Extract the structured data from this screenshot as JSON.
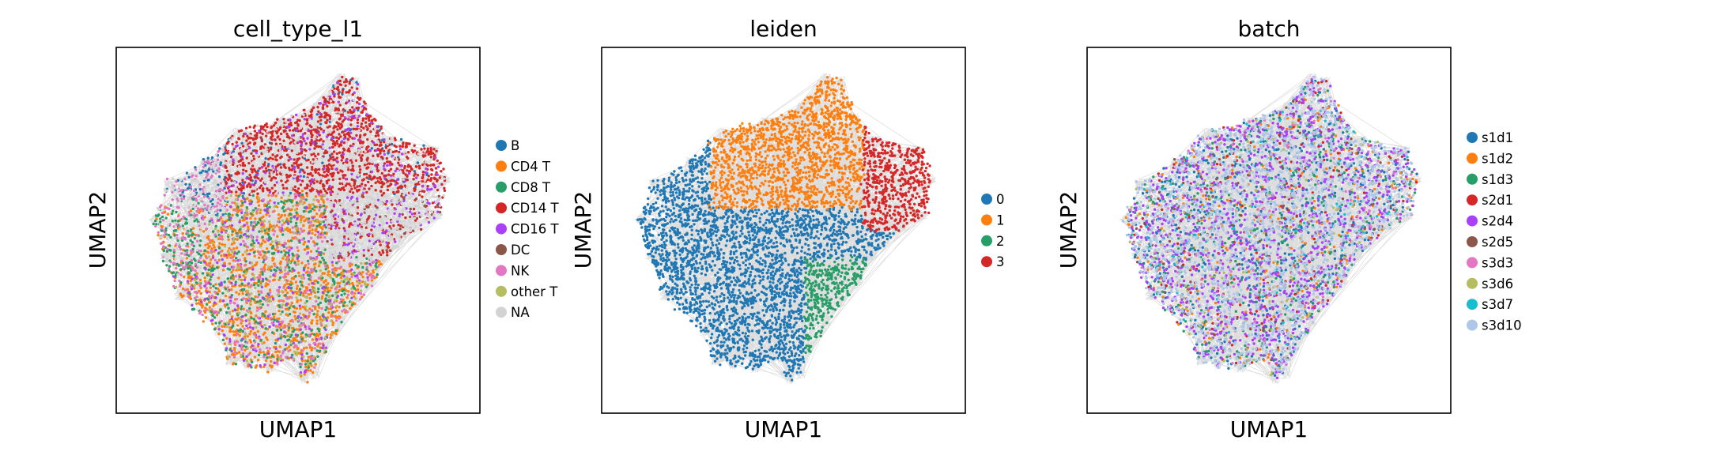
{
  "chart_data": [
    {
      "type": "scatter",
      "title": "cell_type_l1",
      "xlabel": "UMAP1",
      "ylabel": "UMAP2",
      "xticks": [],
      "yticks": [],
      "legend_placement": "right-outside",
      "series": [
        {
          "name": "B",
          "color": "#1f77b4"
        },
        {
          "name": "CD4 T",
          "color": "#ff7f0e"
        },
        {
          "name": "CD8 T",
          "color": "#279e68"
        },
        {
          "name": "CD14 T",
          "color": "#d62728"
        },
        {
          "name": "CD16 T",
          "color": "#aa40fc"
        },
        {
          "name": "DC",
          "color": "#8c564b"
        },
        {
          "name": "NK",
          "color": "#e377c2"
        },
        {
          "name": "other T",
          "color": "#b5bd61"
        },
        {
          "name": "NA",
          "color": "#d3d3d3"
        }
      ]
    },
    {
      "type": "scatter",
      "title": "leiden",
      "xlabel": "UMAP1",
      "ylabel": "UMAP2",
      "xticks": [],
      "yticks": [],
      "legend_placement": "right-outside",
      "series": [
        {
          "name": "0",
          "color": "#1f77b4"
        },
        {
          "name": "1",
          "color": "#ff7f0e"
        },
        {
          "name": "2",
          "color": "#279e68"
        },
        {
          "name": "3",
          "color": "#d62728"
        }
      ]
    },
    {
      "type": "scatter",
      "title": "batch",
      "xlabel": "UMAP1",
      "ylabel": "UMAP2",
      "xticks": [],
      "yticks": [],
      "legend_placement": "right-outside",
      "series": [
        {
          "name": "s1d1",
          "color": "#1f77b4"
        },
        {
          "name": "s1d2",
          "color": "#ff7f0e"
        },
        {
          "name": "s1d3",
          "color": "#279e68"
        },
        {
          "name": "s2d1",
          "color": "#d62728"
        },
        {
          "name": "s2d4",
          "color": "#aa40fc"
        },
        {
          "name": "s2d5",
          "color": "#8c564b"
        },
        {
          "name": "s3d3",
          "color": "#e377c2"
        },
        {
          "name": "s3d6",
          "color": "#b5bd61"
        },
        {
          "name": "s3d7",
          "color": "#17becf"
        },
        {
          "name": "s3d10",
          "color": "#aec7e8"
        }
      ]
    }
  ],
  "style": {
    "background": "#ffffff",
    "edge_color": "#808080",
    "frame_color": "#000000"
  }
}
